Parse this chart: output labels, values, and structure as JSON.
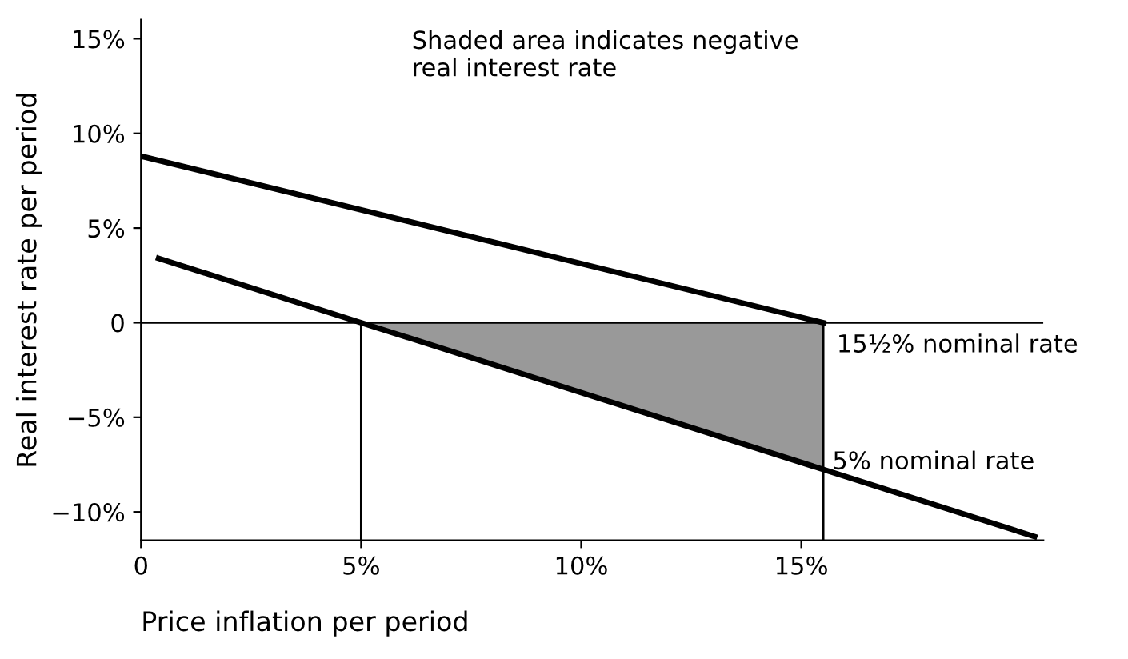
{
  "chart_data": {
    "type": "line",
    "xlabel": "Price inflation per period",
    "ylabel": "Real interest rate per period",
    "annotations": [
      "Shaded area indicates negative\nreal interest rate"
    ],
    "series": [
      {
        "name": "15½% nominal rate",
        "color": "#000000",
        "x": [
          0,
          15.5
        ],
        "values": [
          8.8,
          0
        ]
      },
      {
        "name": "5% nominal rate",
        "color": "#000000",
        "x": [
          0.4,
          5,
          20.3
        ],
        "values": [
          3.4,
          0,
          -11.3
        ]
      },
      {
        "type": "area",
        "color": "#555555",
        "x": [
          5,
          15.5
        ],
        "values": [
          0,
          -7.8
        ]
      }
    ],
    "ref_lines": [
      {
        "axis": "y",
        "value": 0
      },
      {
        "axis": "x",
        "value": 5
      },
      {
        "axis": "x",
        "value": 15.5
      }
    ],
    "xlim": [
      0,
      20.5
    ],
    "ylim": [
      -11.5,
      16
    ],
    "xticks": [
      0,
      {
        "value": 5,
        "label": "5%"
      },
      {
        "value": 10,
        "label": "10%"
      },
      {
        "value": 15,
        "label": "15%"
      }
    ],
    "yticks": [
      {
        "value": -10,
        "label": "−10%"
      },
      {
        "value": -5,
        "label": "−5%"
      },
      0,
      {
        "value": 5,
        "label": "5%"
      },
      {
        "value": 10,
        "label": "10%"
      },
      {
        "value": 15,
        "label": "15%"
      }
    ],
    "grid": false,
    "legend": false
  }
}
